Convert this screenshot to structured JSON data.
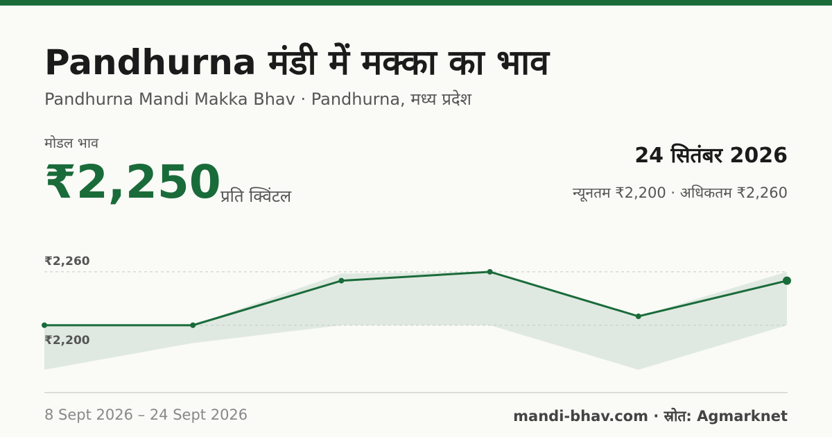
{
  "header": {
    "title": "Pandhurna मंडी में मक्का का भाव",
    "subtitle": "Pandhurna Mandi Makka Bhav · Pandhurna, मध्य प्रदेश"
  },
  "price": {
    "label": "मोडल भाव",
    "value": "₹2,250",
    "unit": "प्रति क्विंटल",
    "date": "24 सितंबर 2026",
    "range": "न्यूनतम ₹2,200 · अधिकतम ₹2,260"
  },
  "chart_data": {
    "type": "line",
    "values": [
      2200,
      2200,
      2250,
      2260,
      2210,
      2250
    ],
    "color": "#1a6b3a",
    "band": {
      "upper": [
        2200,
        2200,
        2258,
        2260,
        2210,
        2260
      ],
      "lower": [
        2150,
        2180,
        2200,
        2200,
        2150,
        2200
      ],
      "color": "#dfe9e1"
    },
    "ylim": [
      2150,
      2275
    ],
    "yticks": [
      {
        "value": 2200,
        "label": "₹2,200"
      },
      {
        "value": 2260,
        "label": "₹2,260"
      }
    ],
    "grid": true
  },
  "footer": {
    "dates": "8 Sept 2026 – 24 Sept 2026",
    "source": "mandi-bhav.com · स्रोत: Agmarknet"
  }
}
